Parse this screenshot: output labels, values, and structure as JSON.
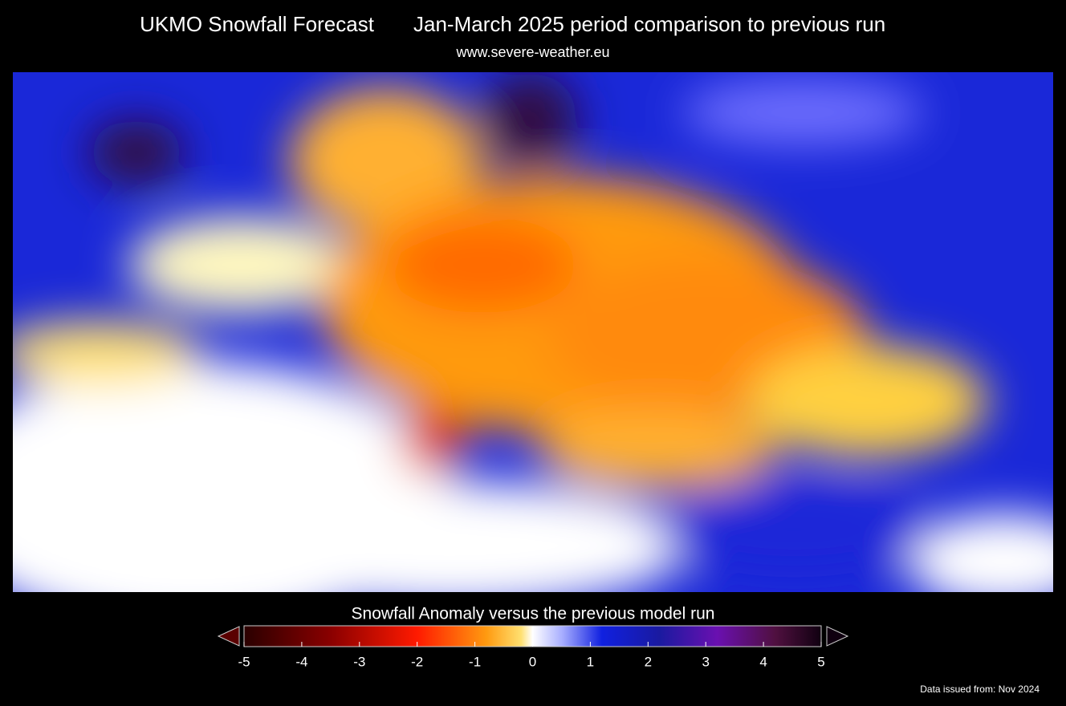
{
  "header": {
    "title": "UKMO Snowfall Forecast",
    "subtitle": "Jan-March 2025 period comparison to previous run",
    "url": "www.severe-weather.eu"
  },
  "legend": {
    "title": "Snowfall Anomaly versus the previous model run",
    "range": [
      -5,
      5
    ],
    "ticks": [
      -5,
      -4,
      -3,
      -2,
      -1,
      0,
      1,
      2,
      3,
      4,
      5
    ]
  },
  "footer": {
    "note": "Data issued from: Nov 2024"
  }
}
